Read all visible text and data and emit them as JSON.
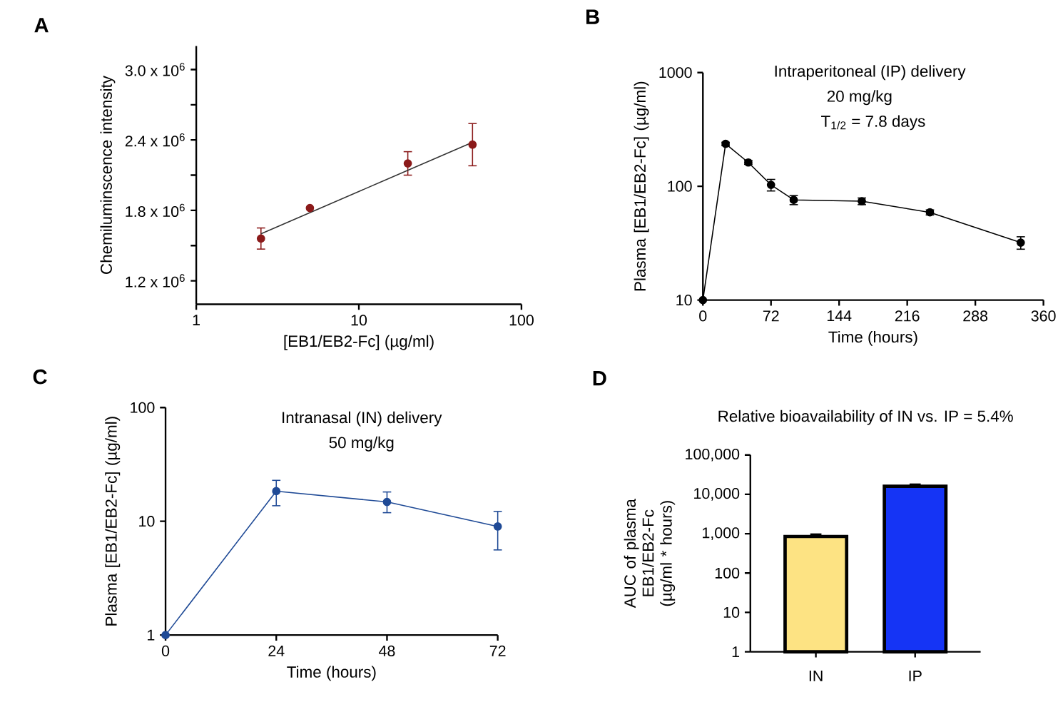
{
  "chart_data": [
    {
      "type": "scatter",
      "xlabel": "[EB1/EB2-Fc] (µg/ml)",
      "ylabel": "Chemiluminscence intensity",
      "annotations": [
        "A"
      ],
      "log": "x",
      "xlim": [
        1,
        100
      ],
      "xticks": [
        1,
        10,
        100
      ],
      "ylim": [
        1000000,
        3200000
      ],
      "yticks": [
        {
          "value": 1200000,
          "label": "1.2 x 10$^{6}$"
        },
        {
          "value": 1500000,
          "label": null
        },
        {
          "value": 1800000,
          "label": "1.8 x 10$^{6}$"
        },
        {
          "value": 2100000,
          "label": null
        },
        {
          "value": 2400000,
          "label": "2.4 x 10$^{6}$"
        },
        {
          "value": 2700000,
          "label": null
        },
        {
          "value": 3000000,
          "label": "3.0 x 10$^{6}$"
        }
      ],
      "series": [
        {
          "type": "scatter",
          "color": "#8b1a1a",
          "marker": "circle",
          "x": [
            2.5,
            5,
            20,
            50
          ],
          "values": [
            1560000,
            1820000,
            2200000,
            2360000
          ],
          "errors": [
            90000,
            null,
            100000,
            180000
          ]
        },
        {
          "type": "line",
          "color": "#333333",
          "marker": "none",
          "line_style": "solid",
          "x": [
            2.5,
            50
          ],
          "values": [
            1600000,
            2380000
          ]
        }
      ]
    },
    {
      "type": "line",
      "xlabel": "Time (hours)",
      "ylabel": "Plasma [EB1/EB2-Fc] (µg/ml)",
      "annotations": [
        "B",
        "Intraperitoneal (IP) delivery",
        "20 mg/kg",
        "T$_{1/2}$ = 7.8 days"
      ],
      "log": true,
      "xlim": [
        0,
        360
      ],
      "xticks": [
        0,
        72,
        144,
        216,
        288,
        360
      ],
      "ylim": [
        10,
        1000
      ],
      "yticks": [
        10,
        100,
        1000
      ],
      "series": [
        {
          "color": "#000000",
          "marker": "circle",
          "line_style": "solid",
          "x": [
            0,
            24,
            48,
            72,
            96,
            168,
            240,
            336
          ],
          "values": [
            10,
            236,
            162,
            103,
            76,
            74,
            59,
            32
          ],
          "errors": [
            null,
            8,
            6,
            12,
            7,
            5,
            3,
            4
          ]
        }
      ]
    },
    {
      "type": "line",
      "xlabel": "Time (hours)",
      "ylabel": "Plasma [EB1/EB2-Fc] (µg/ml)",
      "annotations": [
        "C",
        "Intranasal (IN) delivery",
        "50 mg/kg"
      ],
      "log": true,
      "xlim": [
        0,
        72
      ],
      "xticks": [
        0,
        24,
        48,
        72
      ],
      "ylim": [
        1,
        100
      ],
      "yticks": [
        1,
        10,
        100
      ],
      "series": [
        {
          "color": "#1f4a96",
          "marker": "circle",
          "line_style": "solid",
          "x": [
            0,
            24,
            48,
            72
          ],
          "values": [
            1,
            18.4,
            14.8,
            9.0
          ],
          "errors": [
            null,
            [
              13.7,
              22.9
            ],
            [
              11.9,
              18.1
            ],
            [
              5.6,
              12.2
            ]
          ]
        }
      ]
    },
    {
      "type": "bar",
      "title": "Relative bioavailability of IN vs. IP = 5.4%",
      "ylabel": "AUC of plasma EB1/EB2-Fc (µg/ml * hours)",
      "annotations": [
        "D"
      ],
      "log": true,
      "ylim": [
        1,
        100000
      ],
      "yticks": [
        1,
        10,
        100,
        {
          "value": 1000,
          "label": "1,000"
        },
        {
          "value": 10000,
          "label": "10,000"
        },
        {
          "value": 100000,
          "label": "100,000"
        }
      ],
      "categories": [
        "IN",
        "IP"
      ],
      "values": [
        850,
        16000
      ],
      "errors": [
        120,
        2000
      ],
      "colors": [
        "#fde383",
        "#1534f5"
      ]
    }
  ]
}
